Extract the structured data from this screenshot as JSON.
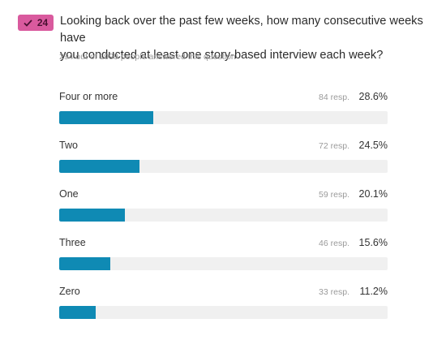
{
  "question": {
    "badge_count": "24",
    "text": "Looking back over the past few weeks, how many consecutive weeks have\nyou conducted at least one story-based interview each week?",
    "answered_text": "294 out of 1999 people answered this question"
  },
  "colors": {
    "badge_bg": "#d95a9e",
    "bar_fill": "#0f8ab4",
    "bar_track": "#f0f0f0"
  },
  "options": [
    {
      "label": "Four or more",
      "responses": "84 resp.",
      "percent": "28.6%",
      "value": 28.6
    },
    {
      "label": "Two",
      "responses": "72 resp.",
      "percent": "24.5%",
      "value": 24.5
    },
    {
      "label": "One",
      "responses": "59 resp.",
      "percent": "20.1%",
      "value": 20.1
    },
    {
      "label": "Three",
      "responses": "46 resp.",
      "percent": "15.6%",
      "value": 15.6
    },
    {
      "label": "Zero",
      "responses": "33 resp.",
      "percent": "11.2%",
      "value": 11.2
    }
  ]
}
